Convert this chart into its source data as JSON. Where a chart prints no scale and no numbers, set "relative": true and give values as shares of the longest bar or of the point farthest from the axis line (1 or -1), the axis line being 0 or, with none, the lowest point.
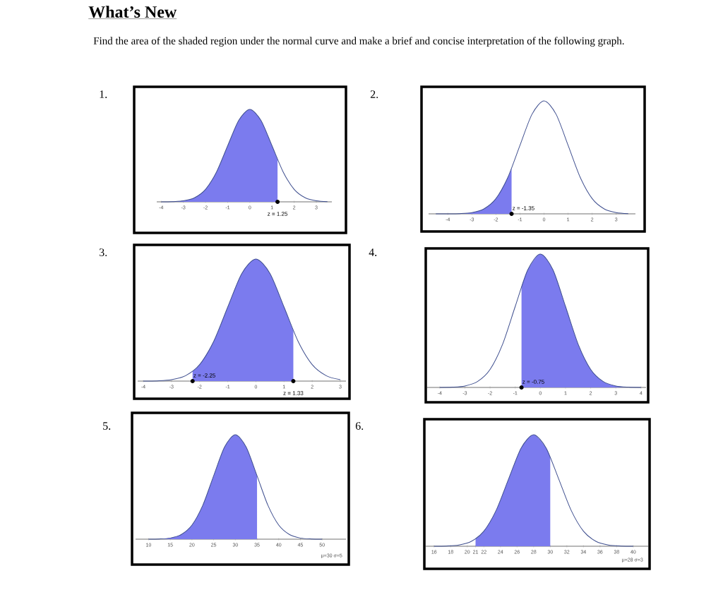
{
  "chart_data": [
    {
      "type": "area",
      "title": "What’s New",
      "subtitle": "Find the area of the shaded region under the normal curve and make a brief and concise interpretation of the following graph.",
      "relative": true,
      "annotations": [
        "1.",
        {
          "text": "z = 1.25",
          "x": 1.25,
          "y": 0
        }
      ],
      "xlim": [
        -4.2,
        3.7
      ],
      "xticks": [
        -4,
        -3,
        -2,
        -1,
        0,
        1,
        2,
        3
      ],
      "series": [
        {
          "color": "#7b7bee",
          "x": [
            -4,
            -3.5,
            -3,
            -2.5,
            -2,
            -1.5,
            -1,
            -0.5,
            0,
            0.5,
            1,
            1.25
          ],
          "values": [
            0.0,
            0.002,
            0.011,
            0.044,
            0.135,
            0.325,
            0.607,
            0.882,
            1,
            0.882,
            0.607,
            0.458
          ]
        },
        {
          "type": "line",
          "color": "#3f4f8f",
          "x": [
            -4,
            -3.5,
            -3,
            -2.5,
            -2,
            -1.5,
            -1,
            -0.5,
            0,
            0.5,
            1,
            1.5,
            2,
            2.5,
            3,
            3.5
          ],
          "values": [
            0.0,
            0.002,
            0.011,
            0.044,
            0.135,
            0.325,
            0.607,
            0.882,
            1,
            0.882,
            0.607,
            0.325,
            0.135,
            0.044,
            0.011,
            0.002
          ]
        }
      ]
    },
    {
      "type": "area",
      "relative": true,
      "annotations": [
        "2.",
        {
          "text": "z = -1.35",
          "x": -1.35,
          "y": 0
        }
      ],
      "xlim": [
        -4.8,
        3.8
      ],
      "xticks": [
        -4,
        -3,
        -2,
        -1,
        0,
        1,
        2,
        3
      ],
      "series": [
        {
          "color": "#7b7bee",
          "x": [
            -4.5,
            -4,
            -3.5,
            -3,
            -2.5,
            -2,
            -1.5,
            -1.35
          ],
          "values": [
            0.0,
            0.0,
            0.002,
            0.011,
            0.044,
            0.135,
            0.325,
            0.402
          ]
        },
        {
          "type": "line",
          "color": "#3f4f8f",
          "x": [
            -4.5,
            -4,
            -3.5,
            -3,
            -2.5,
            -2,
            -1.5,
            -1,
            -0.5,
            0,
            0.5,
            1,
            1.5,
            2,
            2.5,
            3,
            3.5
          ],
          "values": [
            0.0,
            0.0,
            0.002,
            0.011,
            0.044,
            0.135,
            0.325,
            0.607,
            0.882,
            1,
            0.882,
            0.607,
            0.325,
            0.135,
            0.044,
            0.011,
            0.002
          ]
        }
      ]
    },
    {
      "type": "area",
      "relative": true,
      "annotations": [
        "3.",
        {
          "text": "z = -2.25",
          "x": -2.25,
          "y": 0
        },
        {
          "text": "z = 1.33",
          "x": 1.33,
          "y": 0
        }
      ],
      "xlim": [
        -4.2,
        3.2
      ],
      "xticks": [
        -4,
        -3,
        -2,
        -1,
        0,
        1,
        2,
        3
      ],
      "series": [
        {
          "color": "#7b7bee",
          "x": [
            -2.25,
            -2,
            -1.5,
            -1,
            -0.5,
            0,
            0.5,
            1,
            1.33
          ],
          "values": [
            0.08,
            0.135,
            0.325,
            0.607,
            0.882,
            1,
            0.882,
            0.607,
            0.413
          ]
        },
        {
          "type": "line",
          "color": "#3f4f8f",
          "x": [
            -4,
            -3.5,
            -3,
            -2.5,
            -2,
            -1.5,
            -1,
            -0.5,
            0,
            0.5,
            1,
            1.5,
            2,
            2.5,
            3
          ],
          "values": [
            0.0,
            0.002,
            0.011,
            0.044,
            0.135,
            0.325,
            0.607,
            0.882,
            1,
            0.882,
            0.607,
            0.325,
            0.135,
            0.044,
            0.011
          ]
        }
      ]
    },
    {
      "type": "area",
      "relative": true,
      "annotations": [
        "4.",
        {
          "text": "z = -0.75",
          "x": -0.75,
          "y": 0
        }
      ],
      "xlim": [
        -4.5,
        4.2
      ],
      "xticks": [
        -4,
        -3,
        -2,
        -1,
        0,
        1,
        2,
        3,
        4
      ],
      "series": [
        {
          "color": "#7b7bee",
          "x": [
            -0.75,
            -0.5,
            0,
            0.5,
            1,
            1.5,
            2,
            2.5,
            3,
            3.5,
            4
          ],
          "values": [
            0.755,
            0.882,
            1,
            0.882,
            0.607,
            0.325,
            0.135,
            0.044,
            0.011,
            0.002,
            0.0
          ]
        },
        {
          "type": "line",
          "color": "#3f4f8f",
          "x": [
            -4,
            -3.5,
            -3,
            -2.5,
            -2,
            -1.5,
            -1,
            -0.5,
            0,
            0.5,
            1,
            1.5,
            2,
            2.5,
            3,
            3.5,
            4
          ],
          "values": [
            0.0,
            0.002,
            0.011,
            0.044,
            0.135,
            0.325,
            0.607,
            0.882,
            1,
            0.882,
            0.607,
            0.325,
            0.135,
            0.044,
            0.011,
            0.002,
            0.0
          ]
        }
      ]
    },
    {
      "type": "area",
      "relative": true,
      "annotations": [
        "5.",
        "μ=30  σ=5"
      ],
      "xlim": [
        7,
        55.5
      ],
      "xticks": [
        10,
        15,
        20,
        25,
        30,
        35,
        40,
        45,
        50
      ],
      "series": [
        {
          "color": "#7b7bee",
          "x": [
            10,
            12.5,
            15,
            17.5,
            20,
            22.5,
            25,
            27.5,
            30,
            32.5,
            35
          ],
          "values": [
            0.0,
            0.002,
            0.011,
            0.044,
            0.135,
            0.325,
            0.607,
            0.882,
            1,
            0.882,
            0.607
          ]
        },
        {
          "type": "line",
          "color": "#3f4f8f",
          "x": [
            10,
            12.5,
            15,
            17.5,
            20,
            22.5,
            25,
            27.5,
            30,
            32.5,
            35,
            37.5,
            40,
            42.5,
            45,
            47.5,
            50
          ],
          "values": [
            0.0,
            0.002,
            0.011,
            0.044,
            0.135,
            0.325,
            0.607,
            0.882,
            1,
            0.882,
            0.607,
            0.325,
            0.135,
            0.044,
            0.011,
            0.002,
            0.0
          ]
        }
      ]
    },
    {
      "type": "area",
      "relative": true,
      "annotations": [
        "6.",
        "μ=28  σ=3"
      ],
      "xlim": [
        15,
        41.8
      ],
      "xticks": [
        16,
        18,
        20,
        21,
        22,
        24,
        26,
        28,
        30,
        32,
        34,
        36,
        38,
        40
      ],
      "series": [
        {
          "color": "#7b7bee",
          "x": [
            21,
            22,
            23.5,
            25,
            26.5,
            28,
            29.5,
            30
          ],
          "values": [
            0.066,
            0.135,
            0.325,
            0.607,
            0.882,
            1,
            0.882,
            0.801
          ]
        },
        {
          "type": "line",
          "color": "#3f4f8f",
          "x": [
            16,
            17.5,
            19,
            20.5,
            22,
            23.5,
            25,
            26.5,
            28,
            29.5,
            31,
            32.5,
            34,
            35.5,
            37,
            38.5,
            40
          ],
          "values": [
            0.0,
            0.002,
            0.011,
            0.044,
            0.135,
            0.325,
            0.607,
            0.882,
            1,
            0.882,
            0.607,
            0.325,
            0.135,
            0.044,
            0.011,
            0.002,
            0.0
          ]
        }
      ]
    }
  ]
}
